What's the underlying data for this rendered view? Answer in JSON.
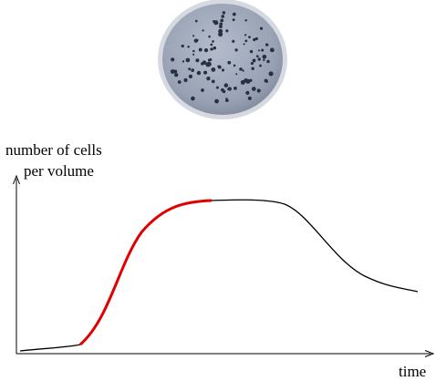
{
  "y_axis": {
    "label_lines": [
      "number of cells",
      "per volume"
    ]
  },
  "x_axis": {
    "label": "time"
  }
}
